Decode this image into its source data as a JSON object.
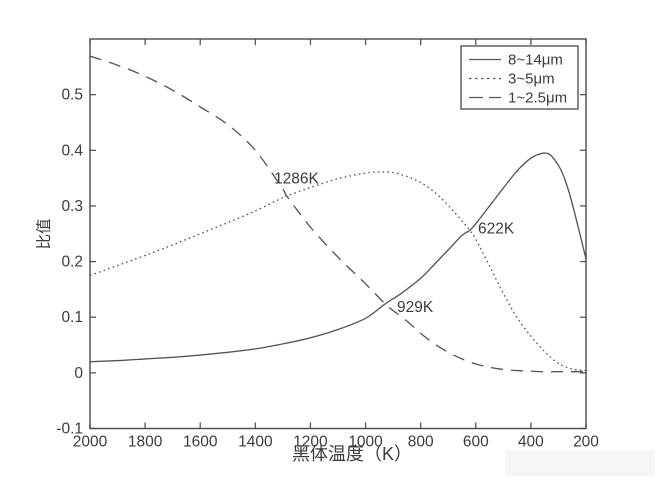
{
  "chart_data": {
    "type": "line",
    "title": "",
    "xlabel": "黑体温度（K）",
    "ylabel": "比值",
    "xlim": [
      2000,
      200
    ],
    "ylim": [
      -0.1,
      0.6
    ],
    "x_axis_reversed": true,
    "grid": false,
    "line_color": "#565656",
    "x_ticks": [
      2000,
      1800,
      1600,
      1400,
      1200,
      1000,
      800,
      600,
      400,
      200
    ],
    "y_ticks": [
      -0.1,
      0,
      0.1,
      0.2,
      0.3,
      0.4,
      0.5
    ],
    "legend": {
      "position": "top-right",
      "entries": [
        {
          "label": "8~14μm",
          "style": "solid"
        },
        {
          "label": "3~5μm",
          "style": "dotted"
        },
        {
          "label": "1~2.5μm",
          "style": "dashed"
        }
      ]
    },
    "series": [
      {
        "name": "8~14μm",
        "style": "solid",
        "points": [
          [
            2000,
            0.02
          ],
          [
            1900,
            0.022
          ],
          [
            1800,
            0.025
          ],
          [
            1700,
            0.028
          ],
          [
            1600,
            0.032
          ],
          [
            1500,
            0.037
          ],
          [
            1400,
            0.043
          ],
          [
            1300,
            0.052
          ],
          [
            1200,
            0.063
          ],
          [
            1100,
            0.078
          ],
          [
            1000,
            0.098
          ],
          [
            929,
            0.124
          ],
          [
            870,
            0.143
          ],
          [
            800,
            0.17
          ],
          [
            750,
            0.195
          ],
          [
            700,
            0.221
          ],
          [
            650,
            0.247
          ],
          [
            622,
            0.256
          ],
          [
            600,
            0.268
          ],
          [
            550,
            0.3
          ],
          [
            500,
            0.332
          ],
          [
            450,
            0.363
          ],
          [
            400,
            0.386
          ],
          [
            370,
            0.393
          ],
          [
            350,
            0.395
          ],
          [
            330,
            0.392
          ],
          [
            300,
            0.373
          ],
          [
            280,
            0.352
          ],
          [
            260,
            0.322
          ],
          [
            240,
            0.285
          ],
          [
            220,
            0.245
          ],
          [
            200,
            0.205
          ]
        ]
      },
      {
        "name": "3~5μm",
        "style": "dotted",
        "points": [
          [
            2000,
            0.175
          ],
          [
            1900,
            0.193
          ],
          [
            1800,
            0.211
          ],
          [
            1700,
            0.23
          ],
          [
            1600,
            0.25
          ],
          [
            1500,
            0.27
          ],
          [
            1400,
            0.291
          ],
          [
            1300,
            0.315
          ],
          [
            1286,
            0.318
          ],
          [
            1200,
            0.333
          ],
          [
            1100,
            0.349
          ],
          [
            1000,
            0.359
          ],
          [
            950,
            0.361
          ],
          [
            900,
            0.36
          ],
          [
            850,
            0.353
          ],
          [
            800,
            0.342
          ],
          [
            750,
            0.325
          ],
          [
            700,
            0.301
          ],
          [
            650,
            0.273
          ],
          [
            622,
            0.256
          ],
          [
            600,
            0.24
          ],
          [
            550,
            0.192
          ],
          [
            500,
            0.143
          ],
          [
            450,
            0.099
          ],
          [
            400,
            0.066
          ],
          [
            350,
            0.038
          ],
          [
            300,
            0.017
          ],
          [
            250,
            0.007
          ],
          [
            200,
            0.004
          ]
        ]
      },
      {
        "name": "1~2.5μm",
        "style": "dashed",
        "points": [
          [
            2000,
            0.569
          ],
          [
            1900,
            0.553
          ],
          [
            1800,
            0.533
          ],
          [
            1700,
            0.508
          ],
          [
            1600,
            0.478
          ],
          [
            1500,
            0.446
          ],
          [
            1400,
            0.4
          ],
          [
            1300,
            0.33
          ],
          [
            1286,
            0.318
          ],
          [
            1200,
            0.262
          ],
          [
            1100,
            0.208
          ],
          [
            1000,
            0.16
          ],
          [
            929,
            0.124
          ],
          [
            900,
            0.112
          ],
          [
            850,
            0.093
          ],
          [
            800,
            0.071
          ],
          [
            750,
            0.052
          ],
          [
            700,
            0.037
          ],
          [
            650,
            0.025
          ],
          [
            600,
            0.016
          ],
          [
            550,
            0.01
          ],
          [
            500,
            0.006
          ],
          [
            450,
            0.004
          ],
          [
            400,
            0.003
          ],
          [
            350,
            0.002
          ],
          [
            300,
            0.002
          ],
          [
            250,
            0.002
          ],
          [
            200,
            0.002
          ]
        ]
      }
    ],
    "annotations": [
      {
        "text": "1286K",
        "x": 1332,
        "y": 0.349
      },
      {
        "text": "929K",
        "x": 886,
        "y": 0.118
      },
      {
        "text": "622K",
        "x": 592,
        "y": 0.259
      }
    ]
  }
}
